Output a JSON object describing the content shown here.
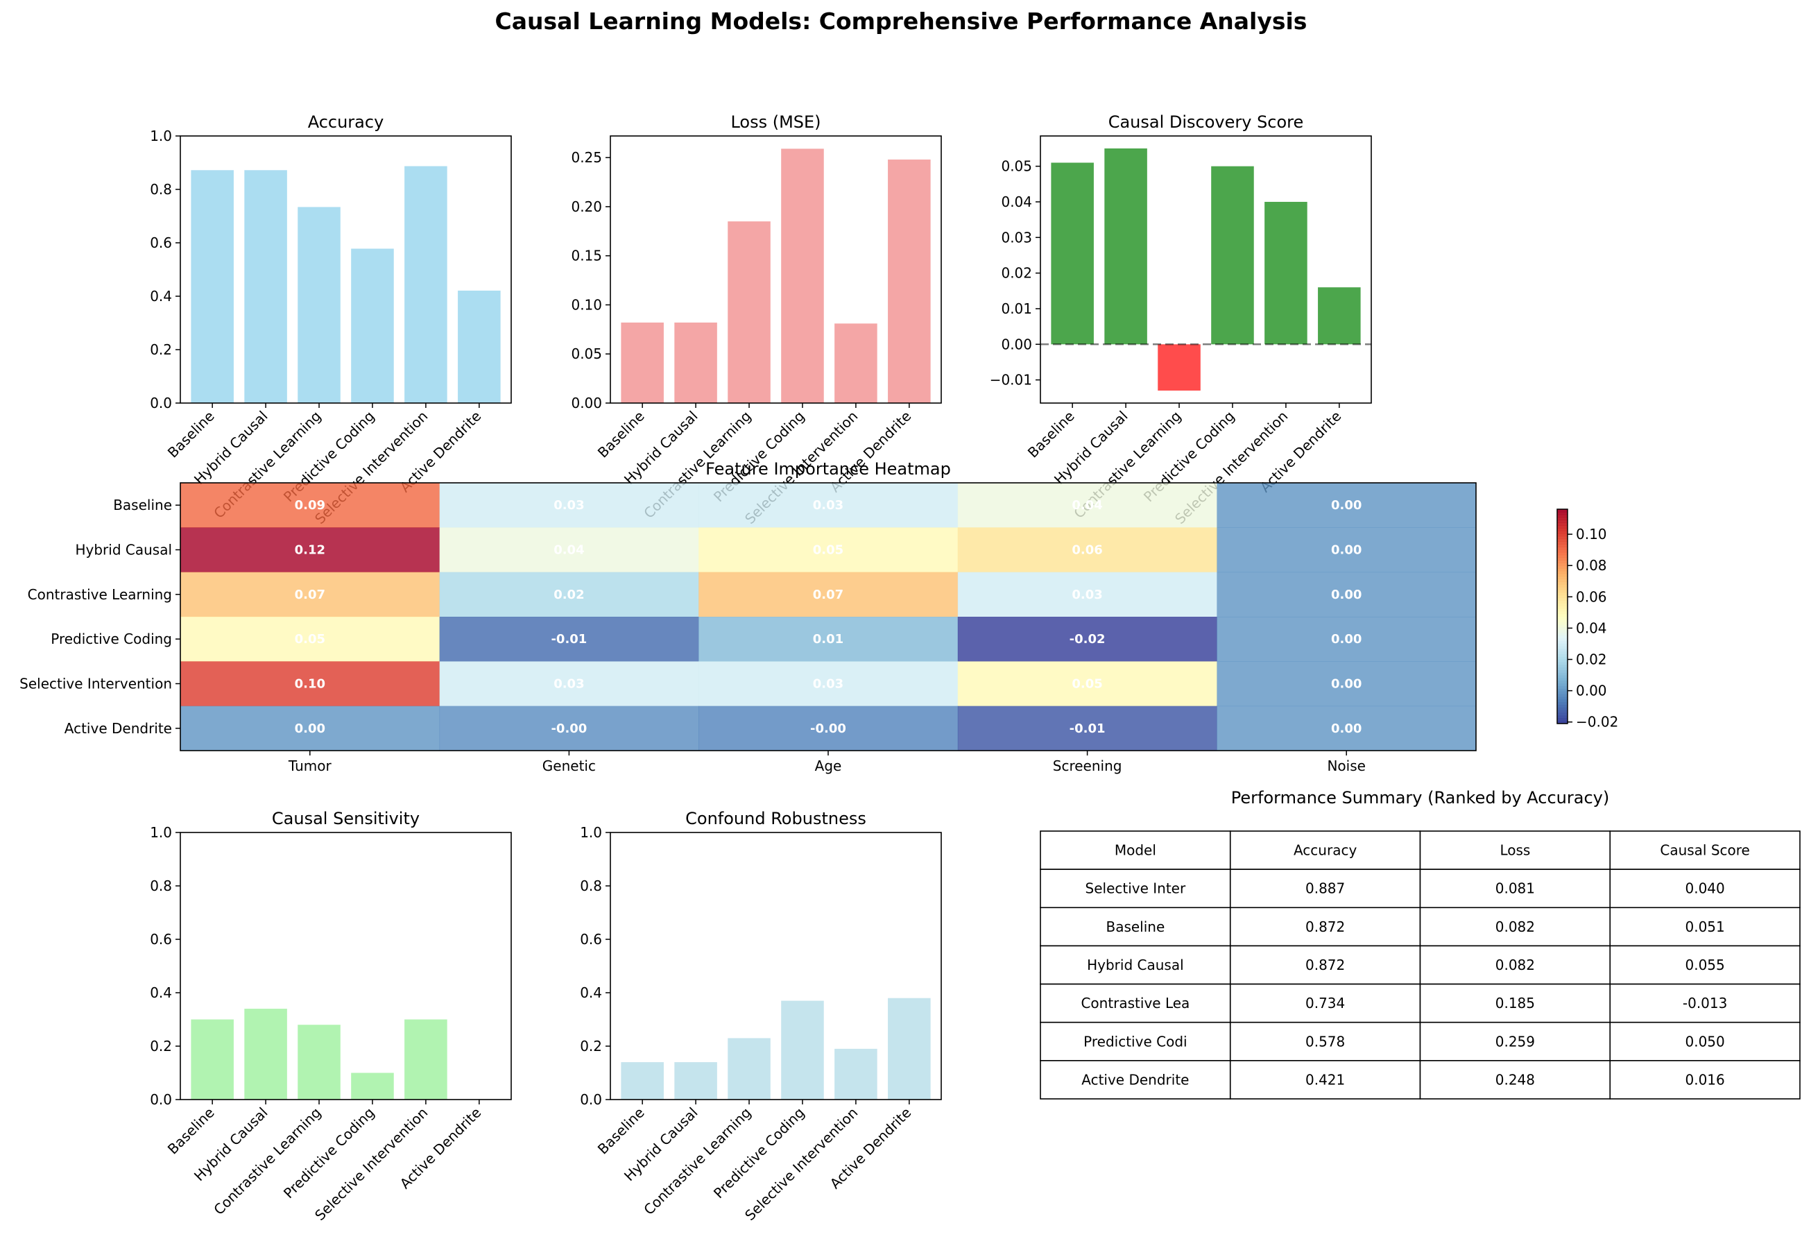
{
  "suptitle": "Causal Learning Models: Comprehensive Performance Analysis",
  "colors": {
    "accuracy": "#87CEEB",
    "loss": "#F08080",
    "causal_pos": "#008000",
    "causal_neg": "#FF0000",
    "sensitivity": "#90EE90",
    "robustness": "#ADD8E6",
    "heatmap_cmap": "RdYlBu_r"
  },
  "chart_data": [
    {
      "id": "accuracy",
      "type": "bar",
      "title": "Accuracy",
      "categories": [
        "Baseline",
        "Hybrid Causal",
        "Contrastive Learning",
        "Predictive Coding",
        "Selective Intervention",
        "Active Dendrite"
      ],
      "values": [
        0.872,
        0.872,
        0.734,
        0.578,
        0.887,
        0.421
      ],
      "ylim": [
        0,
        1.0
      ],
      "yticks": [
        "0.0",
        "0.2",
        "0.4",
        "0.6",
        "0.8",
        "1.0"
      ]
    },
    {
      "id": "loss",
      "type": "bar",
      "title": "Loss (MSE)",
      "categories": [
        "Baseline",
        "Hybrid Causal",
        "Contrastive Learning",
        "Predictive Coding",
        "Selective Intervention",
        "Active Dendrite"
      ],
      "values": [
        0.082,
        0.082,
        0.185,
        0.259,
        0.081,
        0.248
      ],
      "ylim": [
        0,
        0.272
      ],
      "yticks": [
        "0.00",
        "0.05",
        "0.10",
        "0.15",
        "0.20",
        "0.25"
      ]
    },
    {
      "id": "causal",
      "type": "bar",
      "title": "Causal Discovery Score",
      "categories": [
        "Baseline",
        "Hybrid Causal",
        "Contrastive Learning",
        "Predictive Coding",
        "Selective Intervention",
        "Active Dendrite"
      ],
      "values": [
        0.051,
        0.055,
        -0.013,
        0.05,
        0.04,
        0.016
      ],
      "ylim": [
        -0.0165,
        0.0585
      ],
      "yticks": [
        "−0.01",
        "0.00",
        "0.01",
        "0.02",
        "0.03",
        "0.04",
        "0.05"
      ],
      "reference_line": 0
    },
    {
      "id": "heatmap",
      "type": "heatmap",
      "title": "Feature Importance Heatmap",
      "rows": [
        "Baseline",
        "Hybrid Causal",
        "Contrastive Learning",
        "Predictive Coding",
        "Selective Intervention",
        "Active Dendrite"
      ],
      "columns": [
        "Tumor",
        "Genetic",
        "Age",
        "Screening",
        "Noise"
      ],
      "values": [
        [
          0.09,
          0.03,
          0.03,
          0.04,
          0.0
        ],
        [
          0.12,
          0.04,
          0.05,
          0.06,
          0.0
        ],
        [
          0.07,
          0.02,
          0.07,
          0.03,
          0.0
        ],
        [
          0.05,
          -0.01,
          0.01,
          -0.02,
          0.0
        ],
        [
          0.1,
          0.03,
          0.03,
          0.05,
          0.0
        ],
        [
          0.0,
          -0.002,
          -0.004,
          -0.015,
          0.0
        ]
      ],
      "labels": [
        [
          "0.09",
          "0.03",
          "0.03",
          "0.04",
          "0.00"
        ],
        [
          "0.12",
          "0.04",
          "0.05",
          "0.06",
          "0.00"
        ],
        [
          "0.07",
          "0.02",
          "0.07",
          "0.03",
          "0.00"
        ],
        [
          "0.05",
          "-0.01",
          "0.01",
          "-0.02",
          "0.00"
        ],
        [
          "0.10",
          "0.03",
          "0.03",
          "0.05",
          "0.00"
        ],
        [
          "0.00",
          "-0.00",
          "-0.00",
          "-0.01",
          "0.00"
        ]
      ],
      "vmin": -0.021,
      "vmax": 0.116,
      "colorbar_ticks": [
        "−0.02",
        "0.00",
        "0.02",
        "0.04",
        "0.06",
        "0.08",
        "0.10"
      ]
    },
    {
      "id": "sensitivity",
      "type": "bar",
      "title": "Causal Sensitivity",
      "categories": [
        "Baseline",
        "Hybrid Causal",
        "Contrastive Learning",
        "Predictive Coding",
        "Selective Intervention",
        "Active Dendrite"
      ],
      "values": [
        0.3,
        0.34,
        0.28,
        0.1,
        0.3,
        0.0
      ],
      "ylim": [
        0,
        1.0
      ],
      "yticks": [
        "0.0",
        "0.2",
        "0.4",
        "0.6",
        "0.8",
        "1.0"
      ]
    },
    {
      "id": "robustness",
      "type": "bar",
      "title": "Confound Robustness",
      "categories": [
        "Baseline",
        "Hybrid Causal",
        "Contrastive Learning",
        "Predictive Coding",
        "Selective Intervention",
        "Active Dendrite"
      ],
      "values": [
        0.14,
        0.14,
        0.23,
        0.37,
        0.19,
        0.38
      ],
      "ylim": [
        0,
        1.0
      ],
      "yticks": [
        "0.0",
        "0.2",
        "0.4",
        "0.6",
        "0.8",
        "1.0"
      ]
    },
    {
      "id": "summary",
      "type": "table",
      "title": "Performance Summary (Ranked by Accuracy)",
      "columns": [
        "Model",
        "Accuracy",
        "Loss",
        "Causal Score"
      ],
      "rows": [
        [
          "Selective Inter",
          "0.887",
          "0.081",
          "0.040"
        ],
        [
          "Baseline",
          "0.872",
          "0.082",
          "0.051"
        ],
        [
          "Hybrid Causal",
          "0.872",
          "0.082",
          "0.055"
        ],
        [
          "Contrastive Lea",
          "0.734",
          "0.185",
          "-0.013"
        ],
        [
          "Predictive Codi",
          "0.578",
          "0.259",
          "0.050"
        ],
        [
          "Active Dendrite",
          "0.421",
          "0.248",
          "0.016"
        ]
      ]
    }
  ]
}
